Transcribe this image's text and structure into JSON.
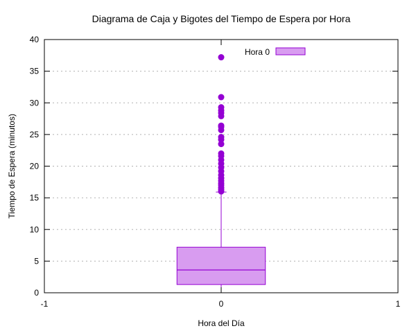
{
  "chart_data": {
    "type": "box",
    "title": "Diagrama de Caja y Bigotes del Tiempo de Espera por Hora",
    "xlabel": "Hora del Día",
    "ylabel": "Tiempo de Espera (minutos)",
    "xlim": [
      -1,
      1
    ],
    "ylim": [
      0,
      40
    ],
    "x_ticks": [
      -1,
      0,
      1
    ],
    "y_ticks": [
      0,
      5,
      10,
      15,
      20,
      25,
      30,
      35,
      40
    ],
    "grid": "horizontal dotted",
    "legend_position": "top-right",
    "series": [
      {
        "name": "Hora 0",
        "x": 0,
        "color": "#9400d3",
        "fill": "#d89cf0",
        "whisker_low": 0,
        "q1": 1.3,
        "median": 3.6,
        "q3": 7.2,
        "whisker_high": 15.9,
        "outliers": [
          16.0,
          16.3,
          16.6,
          17.0,
          17.3,
          17.7,
          18.1,
          18.6,
          19.2,
          19.8,
          20.4,
          21.0,
          21.6,
          22.0,
          23.5,
          24.2,
          24.6,
          25.7,
          26.2,
          26.4,
          27.9,
          28.4,
          28.8,
          29.3,
          30.9,
          37.2
        ]
      }
    ]
  }
}
